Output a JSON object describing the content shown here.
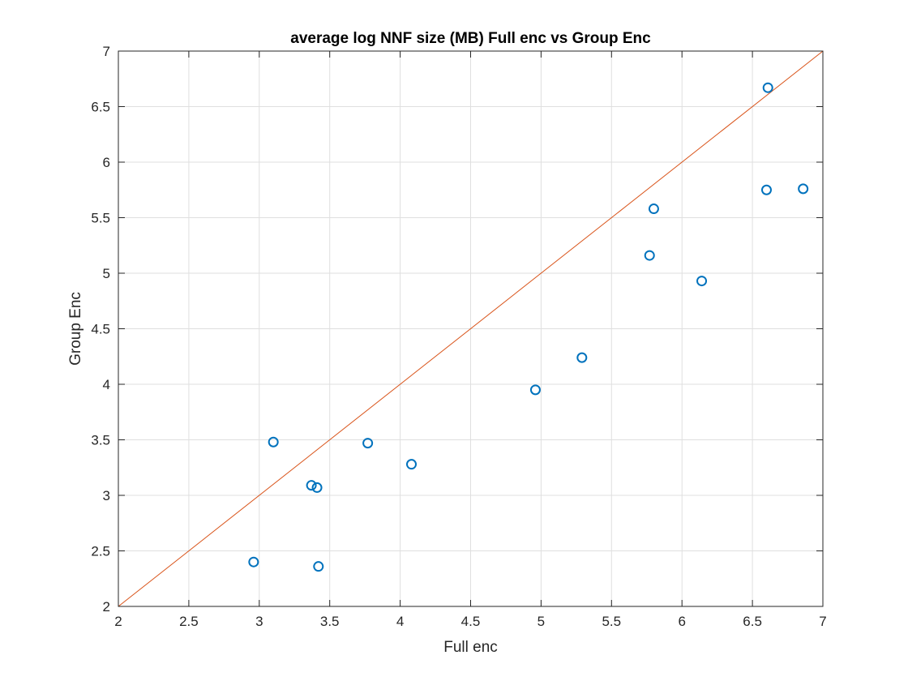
{
  "chart_data": {
    "type": "scatter",
    "title": "average log NNF size (MB) Full enc vs Group Enc",
    "xlabel": "Full enc",
    "ylabel": "Group Enc",
    "xlim": [
      2,
      7
    ],
    "ylim": [
      2,
      7
    ],
    "xticks": [
      "2",
      "2.5",
      "3",
      "3.5",
      "4",
      "4.5",
      "5",
      "5.5",
      "6",
      "6.5",
      "7"
    ],
    "yticks": [
      "2",
      "2.5",
      "3",
      "3.5",
      "4",
      "4.5",
      "5",
      "5.5",
      "6",
      "6.5",
      "7"
    ],
    "grid": true,
    "marker": "circle",
    "series": [
      {
        "color": "#0072BD",
        "points": [
          [
            2.96,
            2.4
          ],
          [
            3.1,
            3.48
          ],
          [
            3.37,
            3.09
          ],
          [
            3.41,
            3.07
          ],
          [
            3.42,
            2.36
          ],
          [
            3.77,
            3.47
          ],
          [
            4.08,
            3.28
          ],
          [
            4.96,
            3.95
          ],
          [
            5.29,
            4.24
          ],
          [
            5.77,
            5.16
          ],
          [
            5.8,
            5.58
          ],
          [
            6.14,
            4.93
          ],
          [
            6.6,
            5.75
          ],
          [
            6.61,
            6.67
          ],
          [
            6.86,
            5.76
          ]
        ]
      }
    ],
    "reference_line": {
      "color": "#D95319",
      "from": [
        2,
        2
      ],
      "to": [
        7,
        7
      ]
    }
  }
}
